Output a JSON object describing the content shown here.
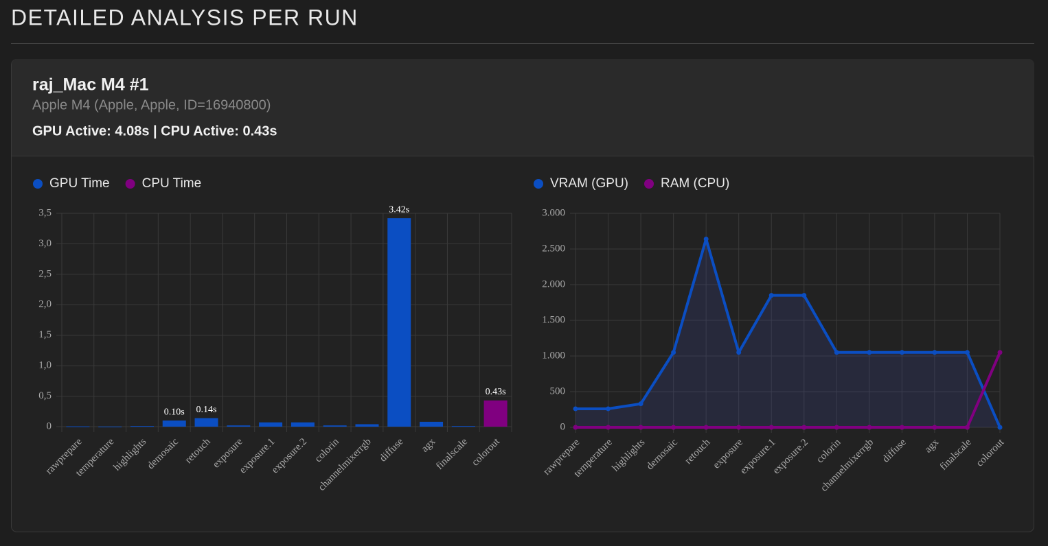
{
  "header": {
    "title": "DETAILED ANALYSIS PER RUN"
  },
  "card": {
    "name": "raj_Mac M4 #1",
    "device": "Apple M4 (Apple, Apple, ID=16940800)",
    "stats": "GPU Active: 4.08s | CPU Active: 0.43s"
  },
  "chart_data": [
    {
      "type": "bar",
      "categories": [
        "rawprepare",
        "temperature",
        "highlights",
        "demosaic",
        "retouch",
        "exposure",
        "exposure.1",
        "exposure.2",
        "colorin",
        "channelmixerrgb",
        "diffuse",
        "agx",
        "finalscale",
        "colorout"
      ],
      "series": [
        {
          "name": "GPU Time",
          "color": "#0b4ec2",
          "values": [
            0.005,
            0.002,
            0.01,
            0.1,
            0.14,
            0.02,
            0.07,
            0.07,
            0.02,
            0.04,
            3.42,
            0.08,
            0.01,
            null
          ],
          "value_labels": [
            null,
            null,
            null,
            "0.10s",
            "0.14s",
            null,
            null,
            null,
            null,
            null,
            "3.42s",
            null,
            null,
            null
          ]
        },
        {
          "name": "CPU Time",
          "color": "#800080",
          "values": [
            null,
            null,
            null,
            null,
            null,
            null,
            null,
            null,
            null,
            null,
            null,
            null,
            null,
            0.43
          ],
          "value_labels": [
            null,
            null,
            null,
            null,
            null,
            null,
            null,
            null,
            null,
            null,
            null,
            null,
            null,
            "0.43s"
          ]
        }
      ],
      "ylim": [
        0,
        3.5
      ],
      "yticks": [
        0,
        {
          "value": 0.5,
          "label": "0,5"
        },
        {
          "value": 1,
          "label": "1,0"
        },
        {
          "value": 1.5,
          "label": "1,5"
        },
        {
          "value": 2,
          "label": "2,0"
        },
        {
          "value": 2.5,
          "label": "2,5"
        },
        {
          "value": 3,
          "label": "3,0"
        },
        {
          "value": 3.5,
          "label": "3,5"
        }
      ],
      "grid": true,
      "legend": "top-left"
    },
    {
      "type": "line",
      "categories": [
        "rawprepare",
        "temperature",
        "highlights",
        "demosaic",
        "retouch",
        "exposure",
        "exposure.1",
        "exposure.2",
        "colorin",
        "channelmixerrgb",
        "diffuse",
        "agx",
        "finalscale",
        "colorout"
      ],
      "series": [
        {
          "name": "VRAM (GPU)",
          "color": "#0b4ec2",
          "area": true,
          "values": [
            260,
            260,
            330,
            1050,
            2640,
            1050,
            1850,
            1850,
            1050,
            1050,
            1050,
            1050,
            1050,
            0
          ]
        },
        {
          "name": "RAM (CPU)",
          "color": "#800080",
          "area": false,
          "values": [
            0,
            0,
            0,
            0,
            0,
            0,
            0,
            0,
            0,
            0,
            0,
            0,
            0,
            1050
          ]
        }
      ],
      "ylim": [
        0,
        3000
      ],
      "yticks": [
        0,
        500,
        {
          "value": 1000,
          "label": "1.000"
        },
        {
          "value": 1500,
          "label": "1.500"
        },
        {
          "value": 2000,
          "label": "2.000"
        },
        {
          "value": 2500,
          "label": "2.500"
        },
        {
          "value": 3000,
          "label": "3.000"
        }
      ],
      "grid": true,
      "legend": "top-left"
    }
  ]
}
